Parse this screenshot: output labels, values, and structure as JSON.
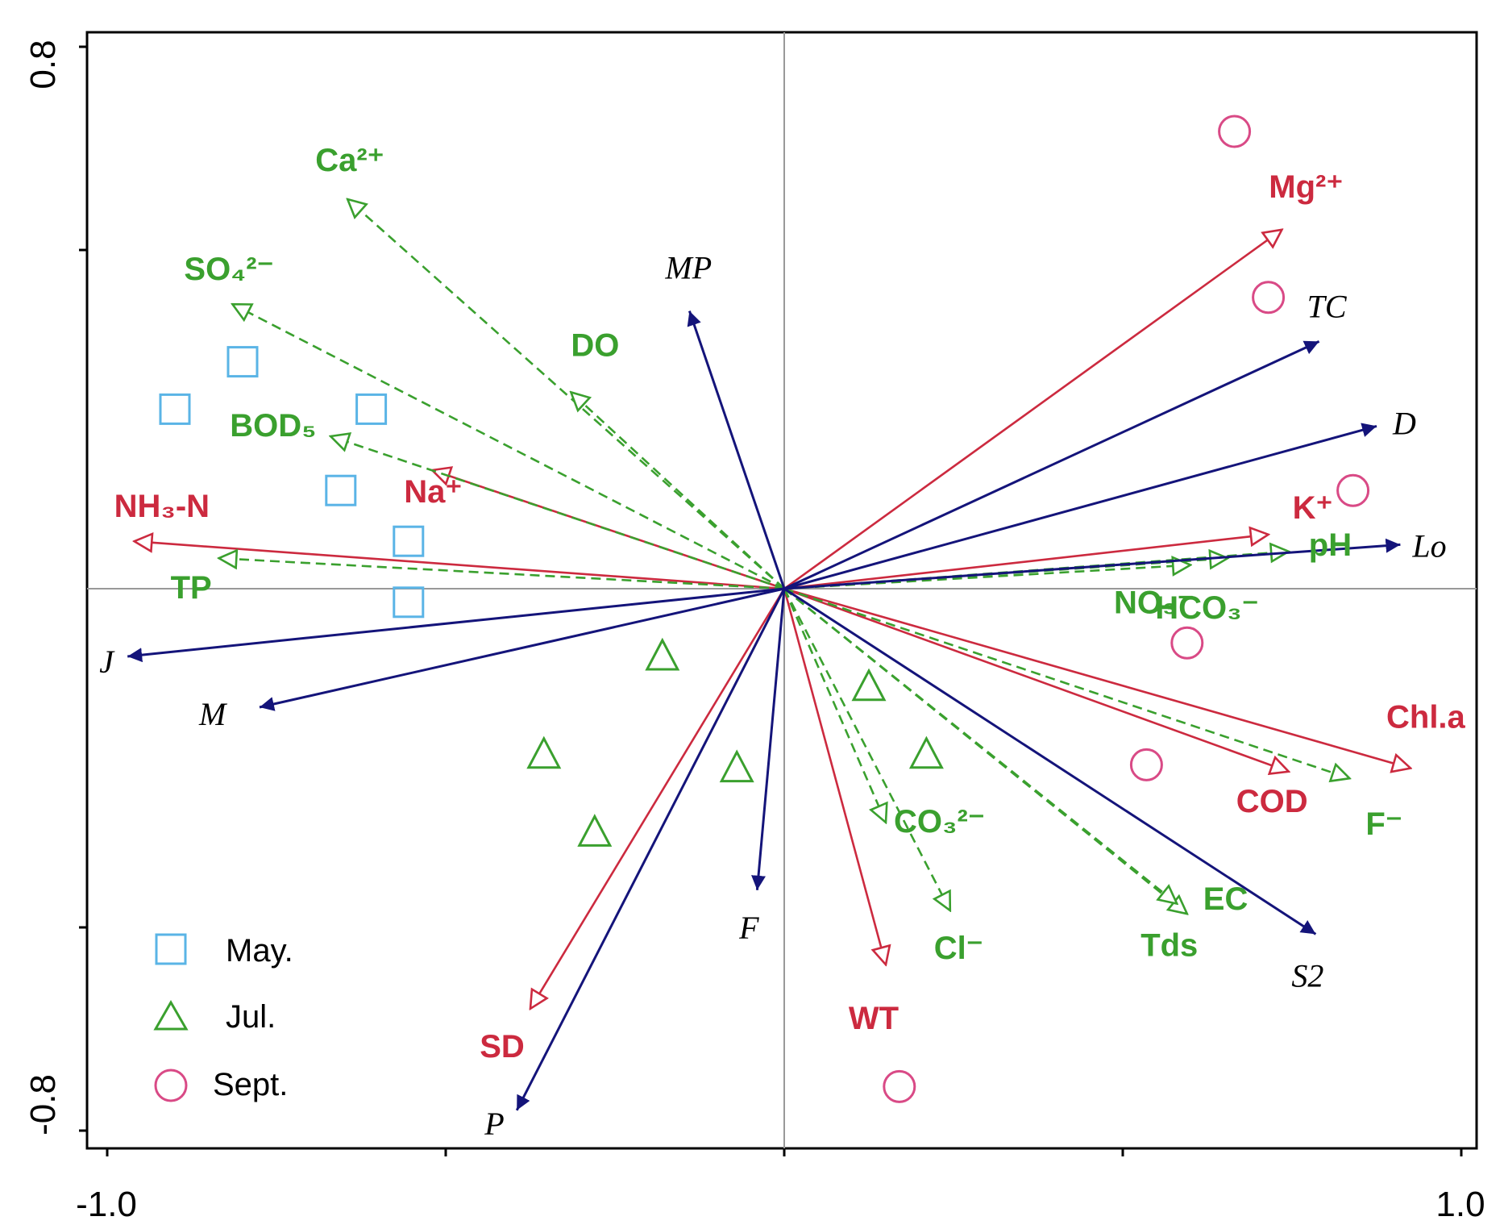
{
  "chart_data": {
    "type": "biplot",
    "x_axis": {
      "min": -1.0,
      "max": 1.0,
      "tick_labels": [
        "-1.0",
        "1.0"
      ],
      "minor_ticks": [
        -0.5,
        0,
        0.5
      ]
    },
    "y_axis": {
      "min": -0.8,
      "max": 0.8,
      "tick_labels": [
        "0.8",
        "-0.8"
      ],
      "minor_ticks": [
        0.5,
        -0.5
      ]
    },
    "colors": {
      "red": "#cc2a3f",
      "green": "#3aa02e",
      "navy": "#14147a",
      "may": "#5ab4e6",
      "jul": "#3aa02e",
      "sept": "#d94a86"
    },
    "arrows": [
      {
        "label": "Mg²⁺",
        "group": "red",
        "x": 0.735,
        "y": 0.53
      },
      {
        "label": "K⁺",
        "group": "red",
        "x": 0.715,
        "y": 0.08
      },
      {
        "label": "Chl.a",
        "group": "red",
        "x": 0.925,
        "y": -0.265
      },
      {
        "label": "COD",
        "group": "red",
        "x": 0.745,
        "y": -0.27
      },
      {
        "label": "WT",
        "group": "red",
        "x": 0.15,
        "y": -0.555
      },
      {
        "label": "SD",
        "group": "red",
        "x": -0.375,
        "y": -0.62
      },
      {
        "label": "NH₃-N",
        "group": "red",
        "x": -0.96,
        "y": 0.07
      },
      {
        "label": "Na⁺",
        "group": "red",
        "x": -0.52,
        "y": 0.175
      },
      {
        "label": "Ca²⁺",
        "group": "green",
        "x": -0.645,
        "y": 0.575
      },
      {
        "label": "SO₄²⁻",
        "group": "green",
        "x": -0.815,
        "y": 0.42
      },
      {
        "label": "DO",
        "group": "green",
        "x": -0.315,
        "y": 0.29
      },
      {
        "label": "BOD₅",
        "group": "green",
        "x": -0.67,
        "y": 0.225
      },
      {
        "label": "TP",
        "group": "green",
        "x": -0.835,
        "y": 0.045
      },
      {
        "label": "pH",
        "group": "green",
        "x": 0.745,
        "y": 0.055
      },
      {
        "label": "HCO₃⁻",
        "group": "green",
        "x": 0.655,
        "y": 0.045
      },
      {
        "label": "NO₃⁻",
        "group": "green",
        "x": 0.6,
        "y": 0.035
      },
      {
        "label": "F⁻",
        "group": "green",
        "x": 0.835,
        "y": -0.28
      },
      {
        "label": "EC",
        "group": "green",
        "x": 0.595,
        "y": -0.48
      },
      {
        "label": "Tds",
        "group": "green",
        "x": 0.58,
        "y": -0.465
      },
      {
        "label": "CO₃²⁻",
        "group": "green",
        "x": 0.15,
        "y": -0.345
      },
      {
        "label": "Cl⁻",
        "group": "green",
        "x": 0.245,
        "y": -0.475
      },
      {
        "label": "MP",
        "group": "navy",
        "x": -0.14,
        "y": 0.41
      },
      {
        "label": "TC",
        "group": "navy",
        "x": 0.79,
        "y": 0.365
      },
      {
        "label": "D",
        "group": "navy",
        "x": 0.875,
        "y": 0.24
      },
      {
        "label": "Lo",
        "group": "navy",
        "x": 0.91,
        "y": 0.065
      },
      {
        "label": "J",
        "group": "navy",
        "x": -0.97,
        "y": -0.1
      },
      {
        "label": "M",
        "group": "navy",
        "x": -0.775,
        "y": -0.175
      },
      {
        "label": "F",
        "group": "navy",
        "x": -0.04,
        "y": -0.445
      },
      {
        "label": "S2",
        "group": "navy",
        "x": 0.785,
        "y": -0.51
      },
      {
        "label": "P",
        "group": "navy",
        "x": -0.395,
        "y": -0.77
      }
    ],
    "samples": [
      {
        "month": "may",
        "x": -0.8,
        "y": 0.335
      },
      {
        "month": "may",
        "x": -0.9,
        "y": 0.265
      },
      {
        "month": "may",
        "x": -0.61,
        "y": 0.265
      },
      {
        "month": "may",
        "x": -0.655,
        "y": 0.145
      },
      {
        "month": "may",
        "x": -0.555,
        "y": 0.07
      },
      {
        "month": "may",
        "x": -0.555,
        "y": -0.02
      },
      {
        "month": "jul",
        "x": -0.18,
        "y": -0.1
      },
      {
        "month": "jul",
        "x": 0.125,
        "y": -0.145
      },
      {
        "month": "jul",
        "x": -0.355,
        "y": -0.245
      },
      {
        "month": "jul",
        "x": -0.07,
        "y": -0.265
      },
      {
        "month": "jul",
        "x": 0.21,
        "y": -0.245
      },
      {
        "month": "jul",
        "x": -0.28,
        "y": -0.36
      },
      {
        "month": "sept",
        "x": 0.665,
        "y": 0.675
      },
      {
        "month": "sept",
        "x": 0.715,
        "y": 0.43
      },
      {
        "month": "sept",
        "x": 0.84,
        "y": 0.145
      },
      {
        "month": "sept",
        "x": 0.595,
        "y": -0.08
      },
      {
        "month": "sept",
        "x": 0.535,
        "y": -0.26
      },
      {
        "month": "sept",
        "x": 0.17,
        "y": -0.735
      }
    ],
    "legend": {
      "position": "bottom-left",
      "entries": [
        {
          "label": "May.",
          "marker": "square",
          "month": "may"
        },
        {
          "label": "Jul.",
          "marker": "triangle",
          "month": "jul"
        },
        {
          "label": "Sept.",
          "marker": "circle",
          "month": "sept"
        }
      ]
    }
  }
}
